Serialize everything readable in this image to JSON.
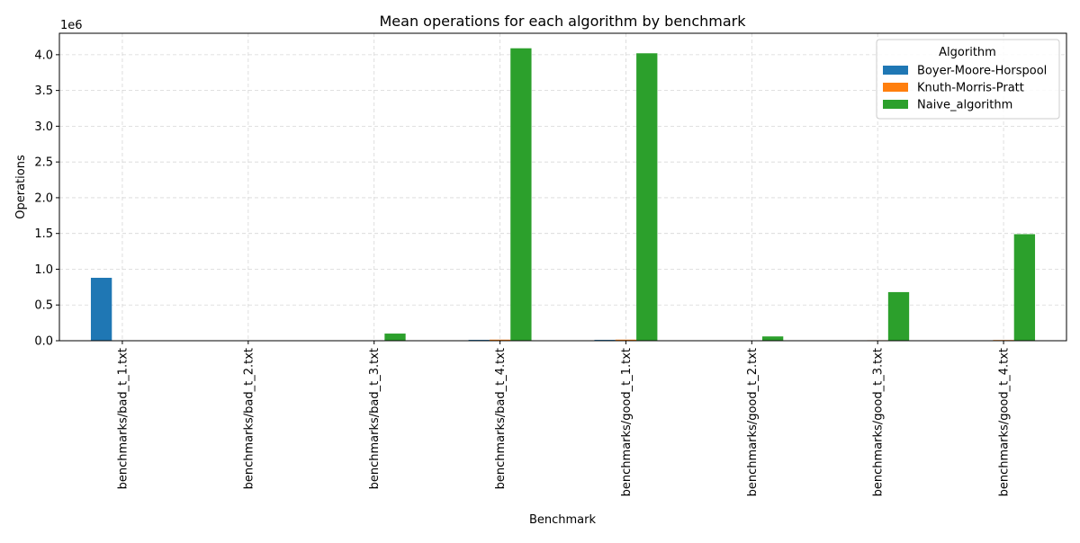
{
  "chart_data": {
    "type": "bar",
    "title": "Mean operations for each algorithm by benchmark",
    "xlabel": "Benchmark",
    "ylabel": "Operations",
    "y_offset_label": "1e6",
    "ylim": [
      0,
      4300000
    ],
    "yticks": [
      0,
      500000,
      1000000,
      1500000,
      2000000,
      2500000,
      3000000,
      3500000,
      4000000
    ],
    "ytick_labels": [
      "0.0",
      "0.5",
      "1.0",
      "1.5",
      "2.0",
      "2.5",
      "3.0",
      "3.5",
      "4.0"
    ],
    "grid": true,
    "legend_title": "Algorithm",
    "legend_position": "top-right",
    "categories": [
      "benchmarks/bad_t_1.txt",
      "benchmarks/bad_t_2.txt",
      "benchmarks/bad_t_3.txt",
      "benchmarks/bad_t_4.txt",
      "benchmarks/good_t_1.txt",
      "benchmarks/good_t_2.txt",
      "benchmarks/good_t_3.txt",
      "benchmarks/good_t_4.txt"
    ],
    "series": [
      {
        "name": "Boyer-Moore-Horspool",
        "color": "#1f77b4",
        "values": [
          880000,
          500,
          2000,
          12000,
          12000,
          500,
          4000,
          5000
        ]
      },
      {
        "name": "Knuth-Morris-Pratt",
        "color": "#ff7f0e",
        "values": [
          800,
          400,
          3000,
          15000,
          15000,
          600,
          7000,
          10000
        ]
      },
      {
        "name": "Naive_algorithm",
        "color": "#2ca02c",
        "values": [
          1000,
          1500,
          100000,
          4090000,
          4020000,
          60000,
          680000,
          1490000
        ]
      }
    ]
  }
}
